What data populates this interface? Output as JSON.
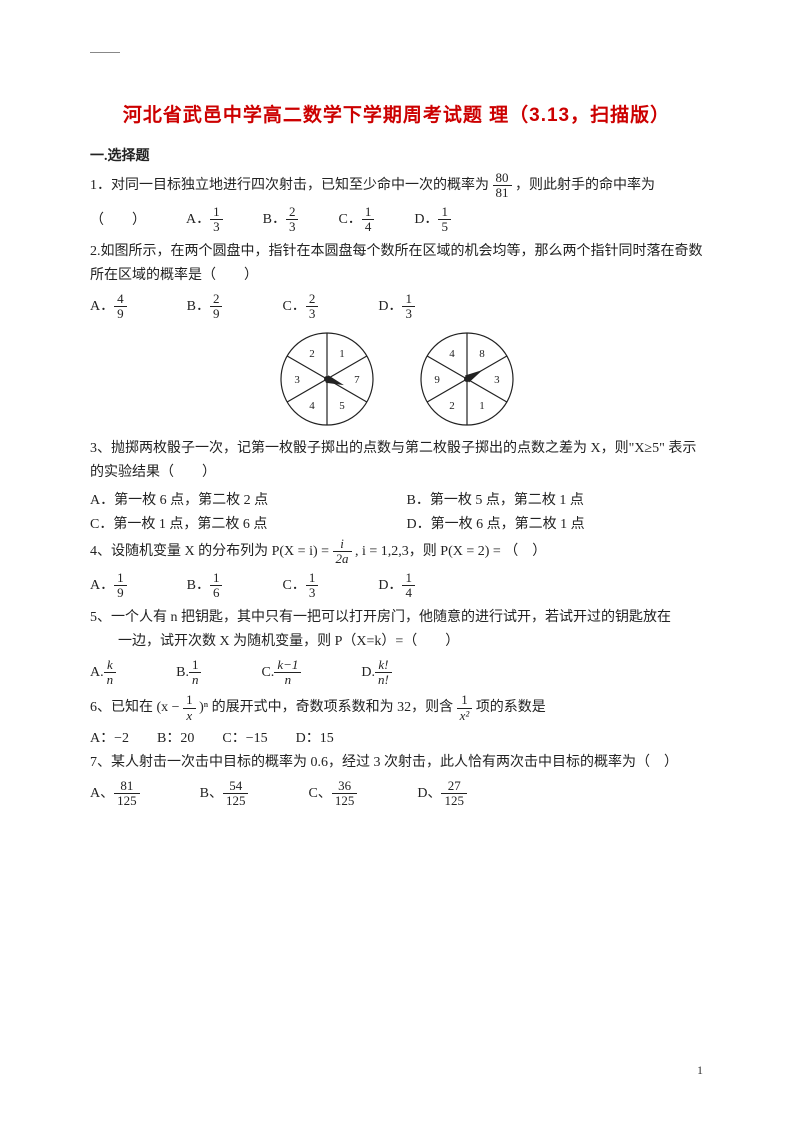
{
  "title": "河北省武邑中学高二数学下学期周考试题 理（3.13，扫描版）",
  "sectionHead": "一.选择题",
  "page_number": "1",
  "q1": {
    "text_a": "1．对同一目标独立地进行四次射击，已知至少命中一次的概率为 ",
    "frac_num": "80",
    "frac_den": "81",
    "text_b": "，则此射手的命中率为",
    "blank": "（　　）",
    "optA_n": "1",
    "optA_d": "3",
    "optB_n": "2",
    "optB_d": "3",
    "optC_n": "1",
    "optC_d": "4",
    "optD_n": "1",
    "optD_d": "5",
    "A": "A．",
    "B": "B．",
    "C": "C．",
    "D": "D．"
  },
  "q2": {
    "text": "2.如图所示，在两个圆盘中，指针在本圆盘每个数所在区域的机会均等，那么两个指针同时落在奇数所在区域的概率是（　　）",
    "optA_n": "4",
    "optA_d": "9",
    "optB_n": "2",
    "optB_d": "9",
    "optC_n": "2",
    "optC_d": "3",
    "optD_n": "1",
    "optD_d": "3",
    "A": "A．",
    "B": "B．",
    "C": "C．",
    "D": "D．",
    "spinner1": [
      "1",
      "7",
      "5",
      "4",
      "3",
      "2"
    ],
    "spinner2": [
      "8",
      "3",
      "1",
      "2",
      "9",
      "4"
    ]
  },
  "q3": {
    "text": "3、抛掷两枚骰子一次，记第一枚骰子掷出的点数与第二枚骰子掷出的点数之差为 X，则\"X≥5\" 表示的实验结果（　　）",
    "optA": "A．第一枚 6 点，第二枚 2 点",
    "optB": "B．第一枚 5 点，第二枚 1 点",
    "optC": "C．第一枚 1 点，第二枚 6 点",
    "optD": "D．第一枚 6 点，第二枚 1 点"
  },
  "q4": {
    "text_a": "4、设随机变量 X 的分布列为 P(X = i) = ",
    "f_num": "i",
    "f_den": "2a",
    "text_b": " , i = 1,2,3，则 P(X = 2) = （　）",
    "optA_n": "1",
    "optA_d": "9",
    "optB_n": "1",
    "optB_d": "6",
    "optC_n": "1",
    "optC_d": "3",
    "optD_n": "1",
    "optD_d": "4",
    "A": "A．",
    "B": "B．",
    "C": "C．",
    "D": "D．"
  },
  "q5": {
    "text_a": "5、一个人有 n 把钥匙，其中只有一把可以打开房门，他随意的进行试开，若试开过的钥匙放在",
    "text_b": "　　一边，试开次数 X 为随机变量，则 P（X=k）=（　　）",
    "optA_n": "k",
    "optA_d": "n",
    "optB_n": "1",
    "optB_d": "n",
    "optC_n": "k−1",
    "optC_d": "n",
    "optD_n": "k!",
    "optD_d": "n!",
    "A": "A.",
    "B": "B.",
    "C": "C.",
    "D": "D."
  },
  "q6": {
    "text_a": "6、已知在 (x − ",
    "f_num": "1",
    "f_den": "x",
    "text_b": " )ⁿ 的展开式中，奇数项系数和为 32，则含 ",
    "f2_num": "1",
    "f2_den": "x²",
    "text_c": " 项的系数是",
    "optA": "A：−2",
    "optB": "B：20",
    "optC": "C：−15",
    "optD": "D：15"
  },
  "q7": {
    "text": "7、某人射击一次击中目标的概率为 0.6，经过 3 次射击，此人恰有两次击中目标的概率为（　）",
    "optA_n": "81",
    "optA_d": "125",
    "optB_n": "54",
    "optB_d": "125",
    "optC_n": "36",
    "optC_d": "125",
    "optD_n": "27",
    "optD_d": "125",
    "A": "A、",
    "B": "B、",
    "C": "C、",
    "D": "D、"
  },
  "spinner_style": {
    "stroke": "#222222",
    "stroke_width": 1.2,
    "radius": 46,
    "font_size": 11,
    "pointer_fill": "#222222"
  }
}
